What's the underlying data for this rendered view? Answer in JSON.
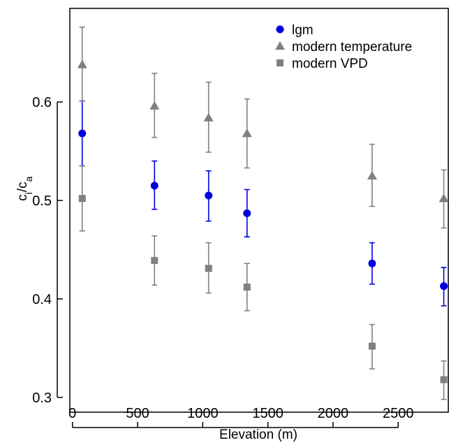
{
  "chart_data": {
    "type": "scatter",
    "title": "",
    "xlabel": "Elevation (m)",
    "ylabel": {
      "main": "c",
      "sub1": "i",
      "sep": "/c",
      "sub2": "a"
    },
    "xlim": [
      -20,
      2890
    ],
    "ylim": [
      0.285,
      0.695
    ],
    "x_ticks": [
      0,
      500,
      1000,
      1500,
      2000,
      2500
    ],
    "y_ticks": [
      0.3,
      0.4,
      0.5,
      0.6
    ],
    "x_tick_labels": [
      "0",
      "500",
      "1000",
      "1500",
      "2000",
      "2500"
    ],
    "y_tick_labels": [
      "0.3",
      "0.4",
      "0.5",
      "0.6"
    ],
    "grid": false,
    "legend_position": "top-right",
    "error_bars": true,
    "series": [
      {
        "name": "lgm",
        "color": "#0000dd",
        "marker": "circle",
        "points": [
          {
            "x": 75,
            "y": 0.568,
            "lo": 0.535,
            "hi": 0.601
          },
          {
            "x": 630,
            "y": 0.515,
            "lo": 0.491,
            "hi": 0.54
          },
          {
            "x": 1045,
            "y": 0.505,
            "lo": 0.479,
            "hi": 0.53
          },
          {
            "x": 1340,
            "y": 0.487,
            "lo": 0.463,
            "hi": 0.511
          },
          {
            "x": 2300,
            "y": 0.436,
            "lo": 0.415,
            "hi": 0.457
          },
          {
            "x": 2850,
            "y": 0.413,
            "lo": 0.393,
            "hi": 0.432
          }
        ]
      },
      {
        "name": "modern temperature",
        "color": "#808080",
        "marker": "triangle",
        "points": [
          {
            "x": 75,
            "y": 0.638,
            "lo": 0.601,
            "hi": 0.676
          },
          {
            "x": 630,
            "y": 0.596,
            "lo": 0.564,
            "hi": 0.629
          },
          {
            "x": 1045,
            "y": 0.584,
            "lo": 0.549,
            "hi": 0.62
          },
          {
            "x": 1340,
            "y": 0.568,
            "lo": 0.533,
            "hi": 0.603
          },
          {
            "x": 2300,
            "y": 0.525,
            "lo": 0.494,
            "hi": 0.557
          },
          {
            "x": 2850,
            "y": 0.502,
            "lo": 0.472,
            "hi": 0.531
          }
        ]
      },
      {
        "name": "modern VPD",
        "color": "#808080",
        "marker": "square",
        "points": [
          {
            "x": 75,
            "y": 0.502,
            "lo": 0.469,
            "hi": 0.535
          },
          {
            "x": 630,
            "y": 0.439,
            "lo": 0.414,
            "hi": 0.464
          },
          {
            "x": 1045,
            "y": 0.431,
            "lo": 0.406,
            "hi": 0.457
          },
          {
            "x": 1340,
            "y": 0.412,
            "lo": 0.388,
            "hi": 0.436
          },
          {
            "x": 2300,
            "y": 0.352,
            "lo": 0.329,
            "hi": 0.374
          },
          {
            "x": 2850,
            "y": 0.318,
            "lo": 0.298,
            "hi": 0.337
          }
        ]
      }
    ]
  }
}
